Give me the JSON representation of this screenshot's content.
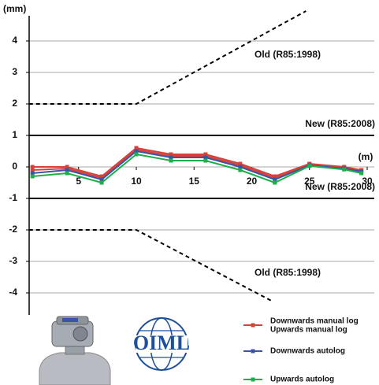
{
  "chart_data": {
    "type": "line",
    "y_label": "(mm)",
    "x_label": "(m)",
    "xlim": [
      0.7,
      30.3
    ],
    "ylim": [
      -4.7,
      4.8
    ],
    "xticks": [
      5,
      10,
      15,
      20,
      25,
      30
    ],
    "yticks": [
      4,
      3,
      2,
      1,
      0,
      -1,
      -2,
      -3,
      -4
    ],
    "grid": true,
    "x": [
      1,
      4,
      7,
      10,
      13,
      16,
      19,
      22,
      25,
      28,
      29.5
    ],
    "series": [
      {
        "name": "Downwards manual log",
        "color": "#d8413a",
        "values": [
          0,
          0,
          -0.3,
          0.6,
          0.4,
          0.4,
          0.1,
          -0.3,
          0.1,
          0,
          -0.1
        ]
      },
      {
        "name": "Upwards manual log",
        "color": "#d8413a",
        "values": [
          -0.1,
          -0.05,
          -0.35,
          0.55,
          0.35,
          0.35,
          0.05,
          -0.35,
          0.08,
          -0.02,
          -0.12
        ]
      },
      {
        "name": "Downwards autolog",
        "color": "#3b54a4",
        "values": [
          -0.2,
          -0.1,
          -0.4,
          0.5,
          0.3,
          0.3,
          0,
          -0.4,
          0.05,
          -0.05,
          -0.15
        ]
      },
      {
        "name": "Upwards autolog",
        "color": "#1fae4b",
        "values": [
          -0.3,
          -0.2,
          -0.5,
          0.4,
          0.2,
          0.2,
          -0.1,
          -0.5,
          0.03,
          -0.08,
          -0.2
        ]
      }
    ],
    "reference_lines": [
      {
        "label": "New (R85:2008)",
        "y": 1
      },
      {
        "label": "New (R85:2008)",
        "y": -1
      }
    ],
    "limit_curves": [
      {
        "label": "Old (R85:1998)",
        "x": [
          0.7,
          10,
          24.7
        ],
        "y": [
          2,
          2,
          4.95
        ]
      },
      {
        "label": "Old (R85:1998)",
        "x": [
          0.7,
          10,
          21.7
        ],
        "y": [
          -2,
          -2,
          -4.25
        ]
      }
    ],
    "logo_text": "OIML"
  }
}
